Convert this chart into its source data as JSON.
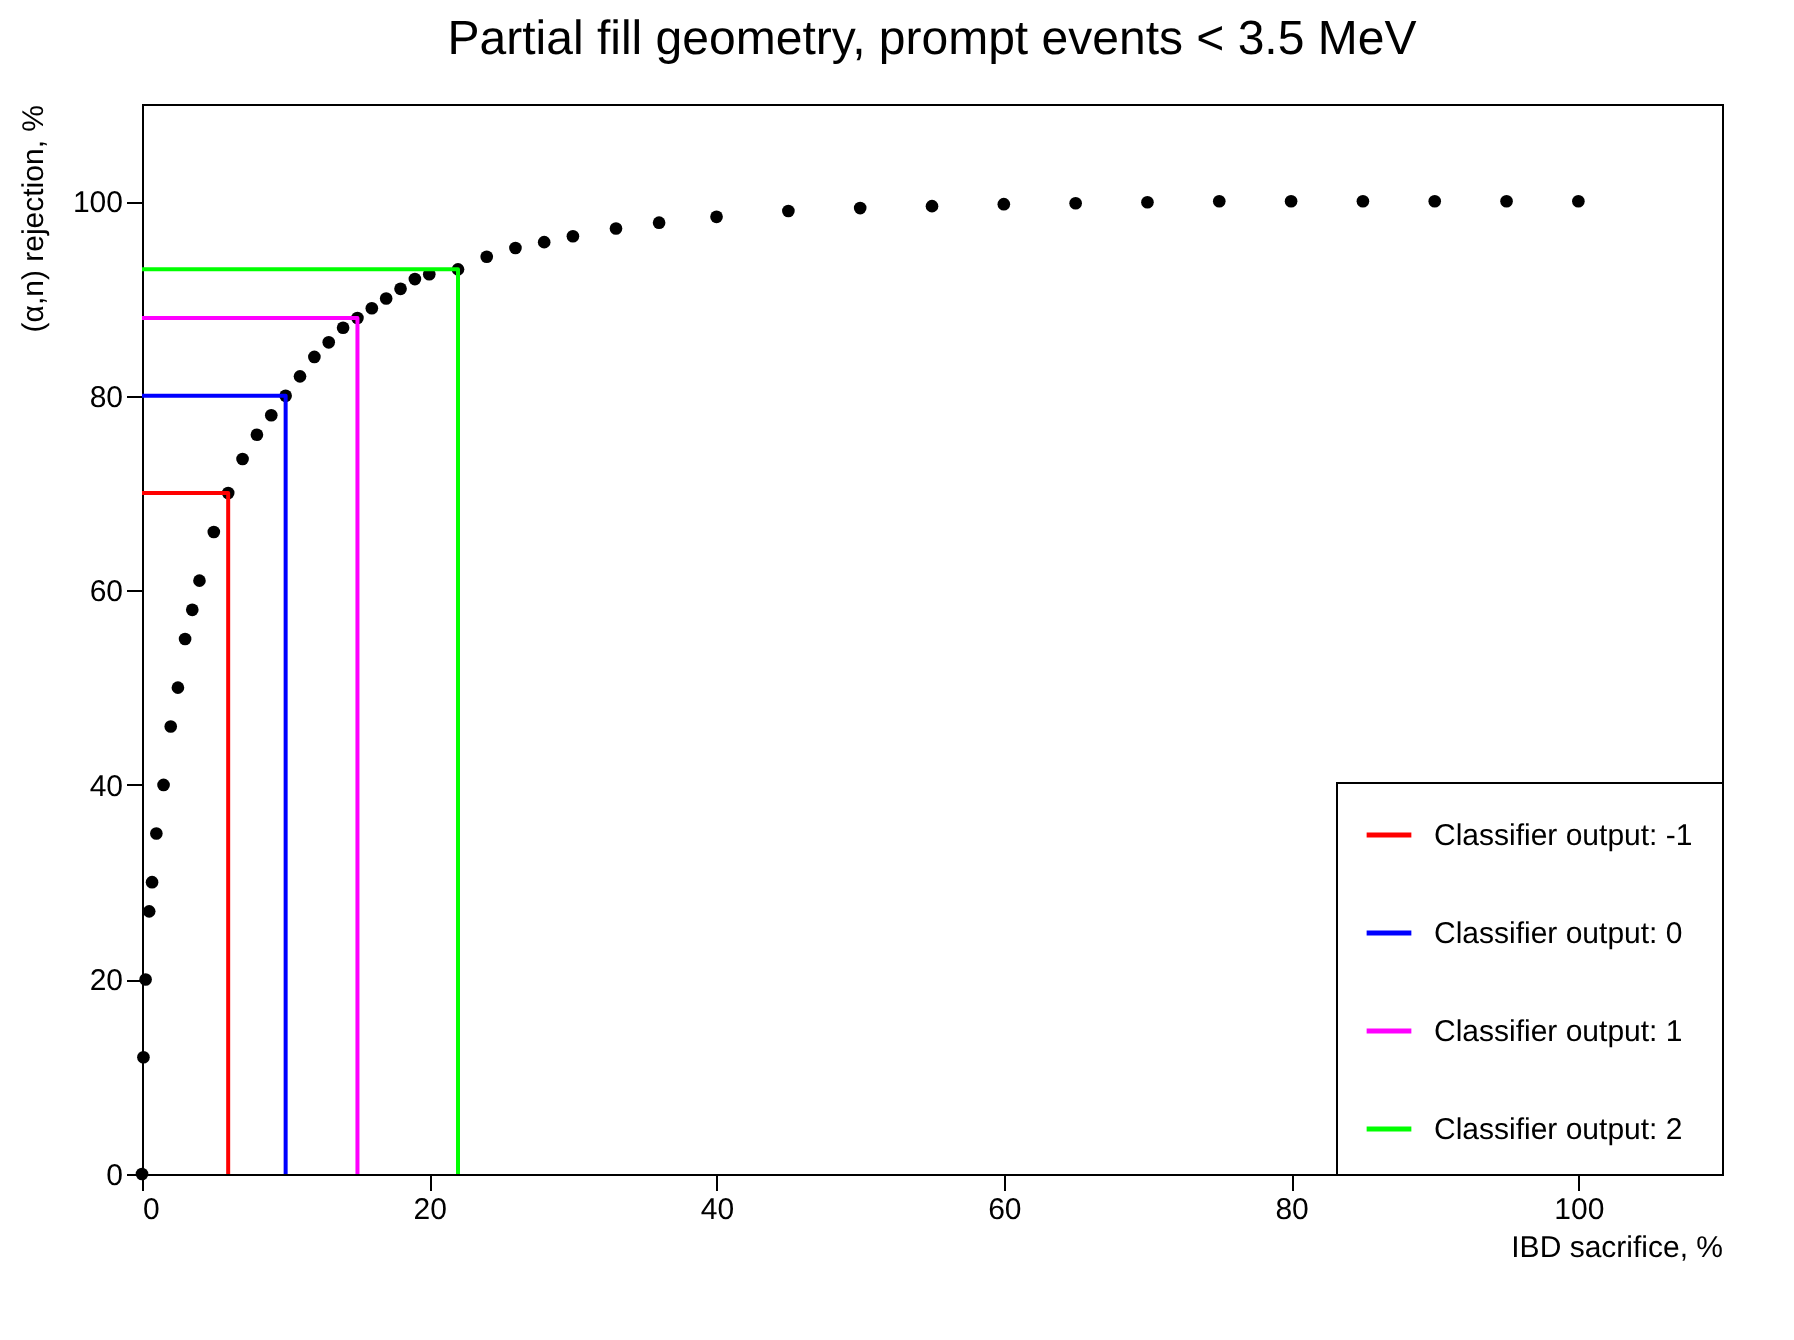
{
  "chart_data": {
    "type": "scatter",
    "title": "Partial fill geometry, prompt events < 3.5 MeV",
    "xlabel": "IBD sacrifice, %",
    "ylabel": "(α,n) rejection, %",
    "xlim": [
      0,
      110
    ],
    "ylim": [
      0,
      110
    ],
    "xticks": [
      0,
      20,
      40,
      60,
      80,
      100
    ],
    "yticks": [
      0,
      20,
      40,
      60,
      80,
      100
    ],
    "legend": "bottom right",
    "series": [
      {
        "type": "scatter",
        "marker": "circle",
        "color": "#000000",
        "x": [
          0,
          0.1,
          0.25,
          0.5,
          0.7,
          1,
          1.5,
          2,
          2.5,
          3,
          3.5,
          4,
          5,
          6,
          7,
          8,
          9,
          10,
          11,
          12,
          13,
          14,
          15,
          16,
          17,
          18,
          19,
          20,
          22,
          24,
          26,
          28,
          30,
          33,
          36,
          40,
          45,
          50,
          55,
          60,
          65,
          70,
          75,
          80,
          85,
          90,
          95,
          100
        ],
        "values": [
          0,
          12,
          20,
          27,
          30,
          35,
          40,
          46,
          50,
          55,
          58,
          61,
          66,
          70,
          73.5,
          76,
          78,
          80,
          82,
          84,
          85.5,
          87,
          88,
          89,
          90,
          91,
          92,
          92.5,
          93,
          94.3,
          95.2,
          95.8,
          96.4,
          97.2,
          97.8,
          98.4,
          99,
          99.3,
          99.5,
          99.7,
          99.8,
          99.9,
          100,
          100,
          100,
          100,
          100,
          100
        ]
      },
      {
        "type": "line",
        "name": "Classifier output: -1",
        "color": "#ff0000",
        "x": [
          0,
          6,
          6
        ],
        "values": [
          70,
          70,
          0
        ]
      },
      {
        "type": "line",
        "name": "Classifier output: 0",
        "color": "#0000ff",
        "x": [
          0,
          10,
          10
        ],
        "values": [
          80,
          80,
          0
        ]
      },
      {
        "type": "line",
        "name": "Classifier output: 1",
        "color": "#ff00ff",
        "x": [
          0,
          15,
          15
        ],
        "values": [
          88,
          88,
          0
        ]
      },
      {
        "type": "line",
        "name": "Classifier output: 2",
        "color": "#00ff00",
        "x": [
          0,
          22,
          22
        ],
        "values": [
          93,
          93,
          0
        ]
      }
    ]
  }
}
